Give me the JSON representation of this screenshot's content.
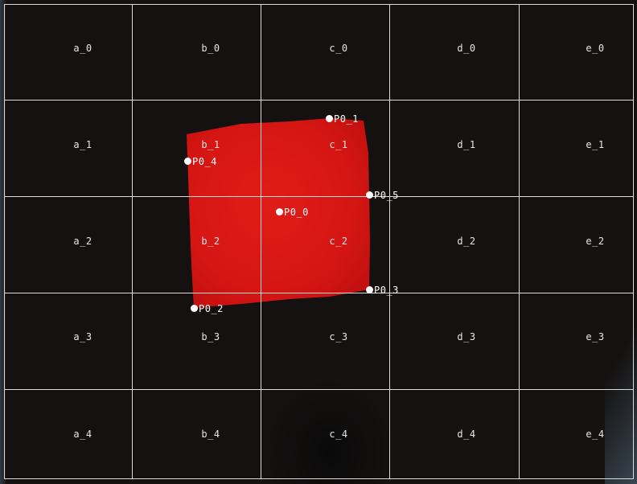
{
  "colors": {
    "background": "#141110",
    "cloth": "#dd1a17",
    "grid": "#dcdcdc",
    "keypoint": "#ffffff"
  },
  "grid": {
    "rows": [
      [
        "a_0",
        "b_0",
        "c_0",
        "d_0",
        "e_0"
      ],
      [
        "a_1",
        "b_1",
        "c_1",
        "d_1",
        "e_1"
      ],
      [
        "a_2",
        "b_2",
        "c_2",
        "d_2",
        "e_2"
      ],
      [
        "a_3",
        "b_3",
        "c_3",
        "d_3",
        "e_3"
      ],
      [
        "a_4",
        "b_4",
        "c_4",
        "d_4",
        "e_4"
      ]
    ]
  },
  "keypoints": {
    "p0_0": "P0_0",
    "p0_1": "P0_1",
    "p0_2": "P0_2",
    "p0_3": "P0_3",
    "p0_4": "P0_4",
    "p0_5": "P0_5"
  }
}
